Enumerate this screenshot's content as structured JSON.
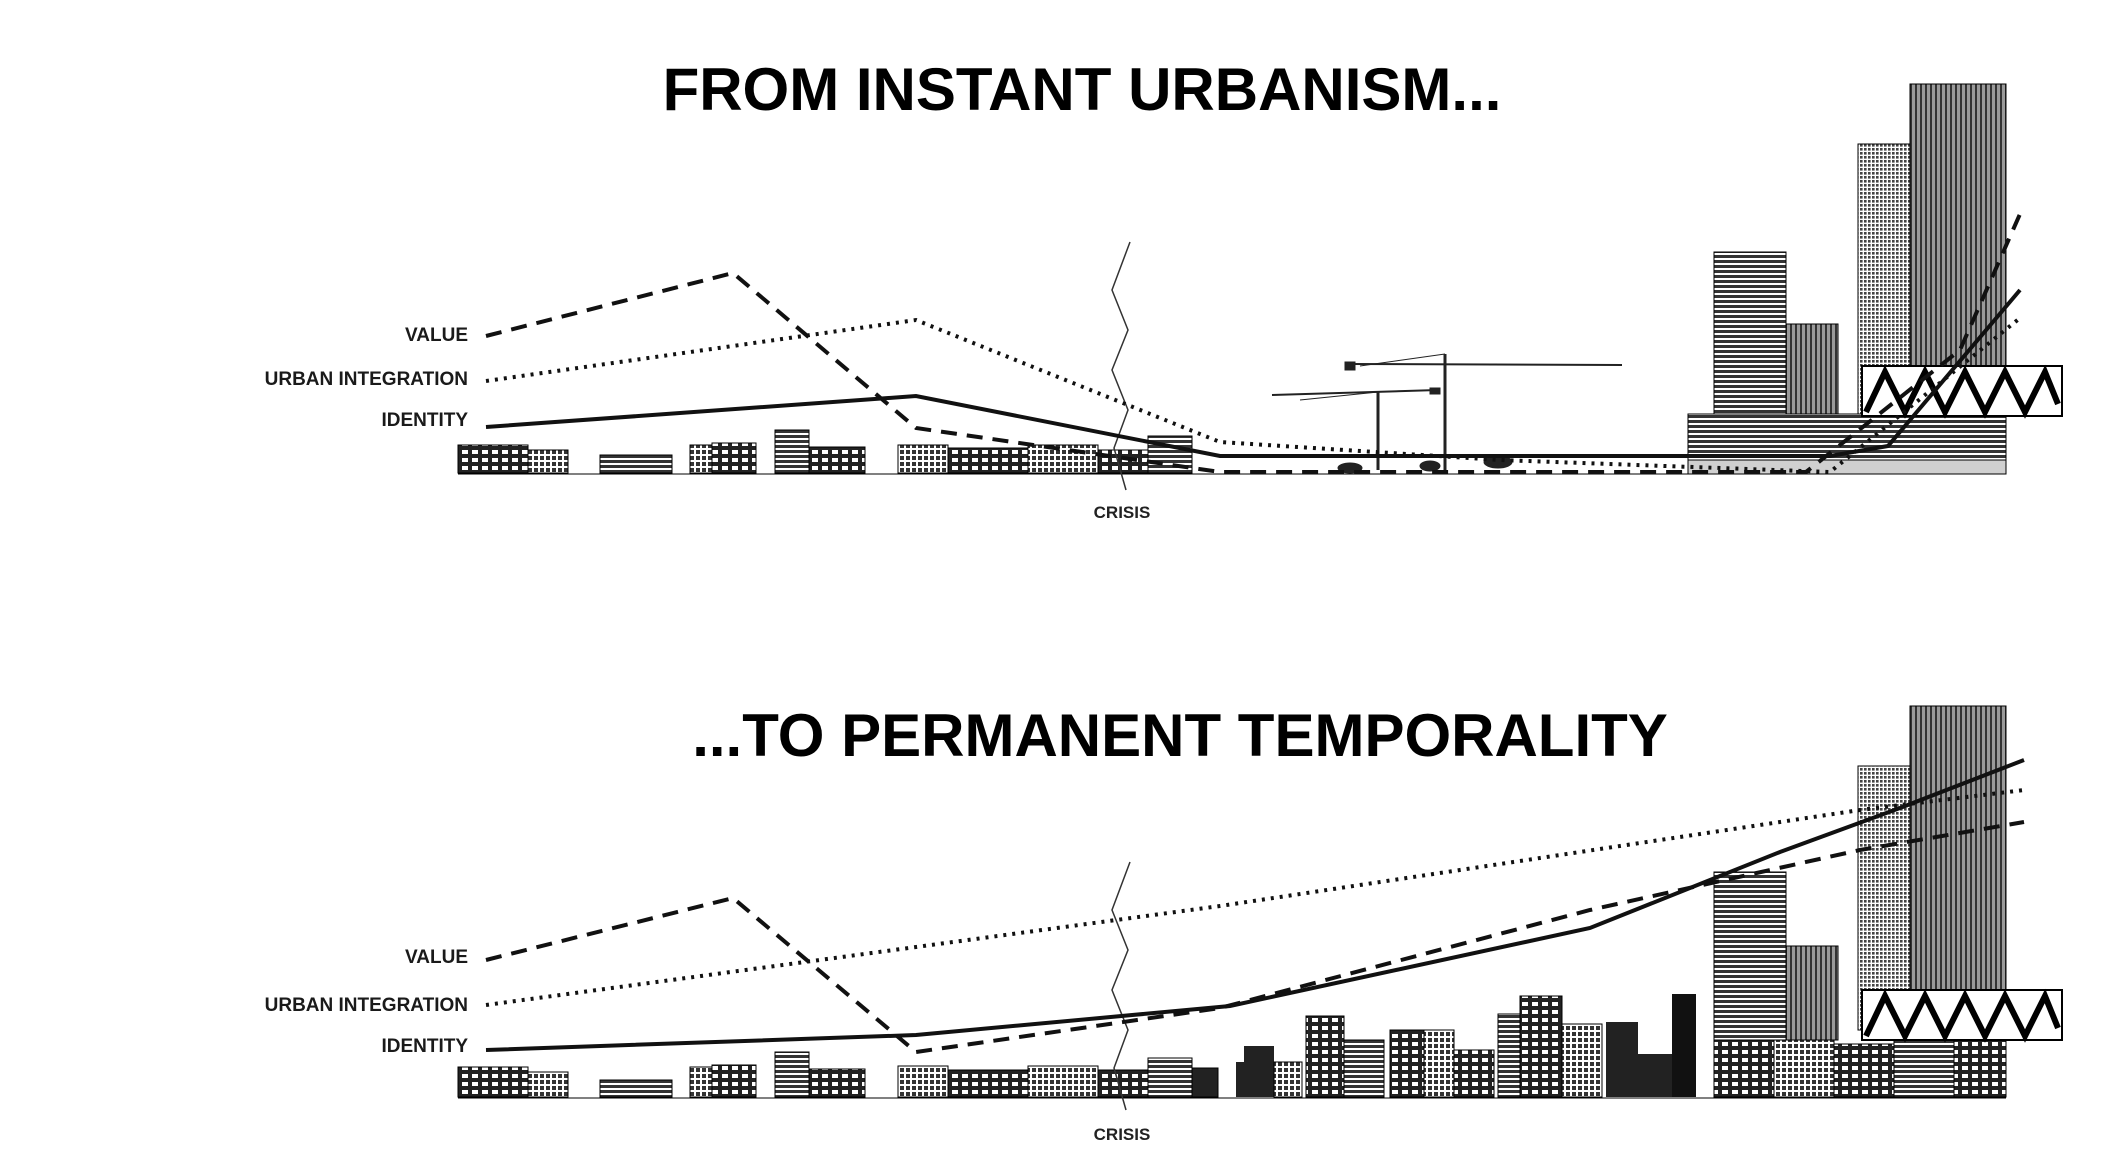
{
  "panels": [
    {
      "title": "FROM INSTANT URBANISM...",
      "legend": {
        "value": "VALUE",
        "urban_integration": "URBAN INTEGRATION",
        "identity": "IDENTITY"
      },
      "crisis_label": "CRISIS"
    },
    {
      "title": "...TO PERMANENT TEMPORALITY",
      "legend": {
        "value": "VALUE",
        "urban_integration": "URBAN INTEGRATION",
        "identity": "IDENTITY"
      },
      "crisis_label": "CRISIS"
    }
  ],
  "line_styles": {
    "value": "dashed",
    "urban_integration": "dotted",
    "identity": "solid"
  },
  "colors": {
    "ink": "#111111",
    "tower_gray": "#6e6e6e",
    "tower_light": "#bdbdbd",
    "background": "#ffffff"
  }
}
